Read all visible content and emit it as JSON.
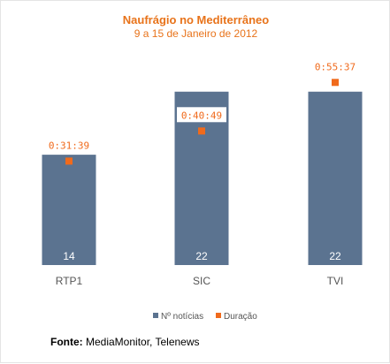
{
  "chart_data": {
    "type": "bar",
    "title": "Naufrágio no Mediterrâneo",
    "subtitle": "9 a 15 de Janeiro de 2012",
    "categories": [
      "RTP1",
      "SIC",
      "TVI"
    ],
    "series": [
      {
        "name": "Nº notícias",
        "values": [
          14,
          22,
          22
        ],
        "labels": [
          "14",
          "22",
          "22"
        ],
        "axis": "left"
      },
      {
        "name": "Duração",
        "values": [
          31.65,
          40.82,
          55.62
        ],
        "labels": [
          "0:31:39",
          "0:40:49",
          "0:55:37"
        ],
        "axis": "right"
      }
    ],
    "ylim_left": [
      0,
      25
    ],
    "ylim_right": [
      0,
      60
    ],
    "grid": false,
    "legend_position": "bottom-center"
  },
  "colors": {
    "bar": "#5b7390",
    "marker": "#f06a1c",
    "title": "#e8731a",
    "tick_label": "#555555",
    "bar_label": "#ffffff"
  },
  "source": {
    "label": "Fonte:",
    "text": "MediaMonitor, Telenews"
  }
}
